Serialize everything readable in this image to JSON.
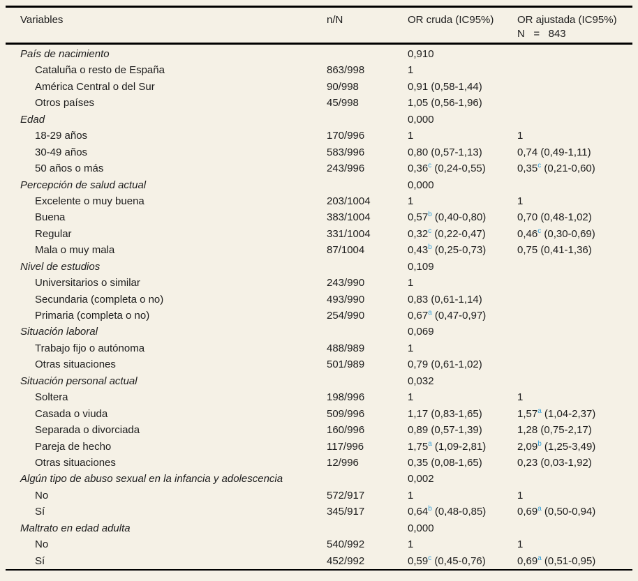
{
  "colors": {
    "background": "#f5f1e6",
    "text": "#1c1c1c",
    "superscript_blue": "#35a0d8",
    "rule": "#000000"
  },
  "table": {
    "columns": [
      {
        "label": "Variables"
      },
      {
        "label": "n/N"
      },
      {
        "label": "OR cruda (IC95%)"
      },
      {
        "label": "OR ajustada (IC95%)",
        "sublabel": "N   =   843"
      }
    ],
    "rows": [
      {
        "group": true,
        "label": "País de nacimiento",
        "p": "0,910"
      },
      {
        "label": "Cataluña o resto de España",
        "nN": "863/998",
        "cruda": {
          "v": "1"
        }
      },
      {
        "label": "América Central o del Sur",
        "nN": "90/998",
        "cruda": {
          "v": "0,91",
          "ci": "(0,58-1,44)"
        }
      },
      {
        "label": "Otros países",
        "nN": "45/998",
        "cruda": {
          "v": "1,05",
          "ci": "(0,56-1,96)"
        }
      },
      {
        "group": true,
        "label": "Edad",
        "p": "0,000"
      },
      {
        "label": "18-29 años",
        "nN": "170/996",
        "cruda": {
          "v": "1"
        },
        "ajustada": {
          "v": "1"
        }
      },
      {
        "label": "30-49 años",
        "nN": "583/996",
        "cruda": {
          "v": "0,80",
          "ci": "(0,57-1,13)"
        },
        "ajustada": {
          "v": "0,74",
          "ci": "(0,49-1,11)"
        }
      },
      {
        "label": "50 años o más",
        "nN": "243/996",
        "cruda": {
          "v": "0,36",
          "sup": "c",
          "ci": "(0,24-0,55)"
        },
        "ajustada": {
          "v": "0,35",
          "sup": "c",
          "ci": "(0,21-0,60)"
        }
      },
      {
        "group": true,
        "label": "Percepción de salud actual",
        "p": "0,000"
      },
      {
        "label": "Excelente o muy buena",
        "nN": "203/1004",
        "cruda": {
          "v": "1"
        },
        "ajustada": {
          "v": "1"
        }
      },
      {
        "label": "Buena",
        "nN": "383/1004",
        "cruda": {
          "v": "0,57",
          "sup": "b",
          "ci": "(0,40-0,80)"
        },
        "ajustada": {
          "v": "0,70",
          "ci": "(0,48-1,02)"
        }
      },
      {
        "label": "Regular",
        "nN": "331/1004",
        "cruda": {
          "v": "0,32",
          "sup": "c",
          "ci": "(0,22-0,47)"
        },
        "ajustada": {
          "v": "0,46",
          "sup": "c",
          "ci": "(0,30-0,69)"
        }
      },
      {
        "label": "Mala o muy mala",
        "nN": "87/1004",
        "cruda": {
          "v": "0,43",
          "sup": "b",
          "ci": "(0,25-0,73)"
        },
        "ajustada": {
          "v": "0,75",
          "ci": "(0,41-1,36)"
        }
      },
      {
        "group": true,
        "label": "Nivel de estudios",
        "p": "0,109"
      },
      {
        "label": "Universitarios o similar",
        "nN": "243/990",
        "cruda": {
          "v": "1"
        }
      },
      {
        "label": "Secundaria (completa o no)",
        "nN": "493/990",
        "cruda": {
          "v": "0,83",
          "ci": "(0,61-1,14)"
        }
      },
      {
        "label": "Primaria (completa o no)",
        "nN": "254/990",
        "cruda": {
          "v": "0,67",
          "sup": "a",
          "ci": "(0,47-0,97)"
        }
      },
      {
        "group": true,
        "label": "Situación laboral",
        "p": "0,069"
      },
      {
        "label": "Trabajo fijo o autónoma",
        "nN": "488/989",
        "cruda": {
          "v": "1"
        }
      },
      {
        "label": "Otras situaciones",
        "nN": "501/989",
        "cruda": {
          "v": "0,79",
          "ci": "(0,61-1,02)"
        }
      },
      {
        "group": true,
        "label": "Situación personal actual",
        "p": "0,032"
      },
      {
        "label": "Soltera",
        "nN": "198/996",
        "cruda": {
          "v": "1"
        },
        "ajustada": {
          "v": "1"
        }
      },
      {
        "label": "Casada o viuda",
        "nN": "509/996",
        "cruda": {
          "v": "1,17",
          "ci": "(0,83-1,65)"
        },
        "ajustada": {
          "v": "1,57",
          "sup": "a",
          "ci": "(1,04-2,37)"
        }
      },
      {
        "label": "Separada o divorciada",
        "nN": "160/996",
        "cruda": {
          "v": "0,89",
          "ci": "(0,57-1,39)"
        },
        "ajustada": {
          "v": "1,28",
          "ci": "(0,75-2,17)"
        }
      },
      {
        "label": "Pareja de hecho",
        "nN": "117/996",
        "cruda": {
          "v": "1,75",
          "sup": "a",
          "ci": "(1,09-2,81)"
        },
        "ajustada": {
          "v": "2,09",
          "sup": "b",
          "ci": "(1,25-3,49)"
        }
      },
      {
        "label": "Otras situaciones",
        "nN": "12/996",
        "cruda": {
          "v": "0,35",
          "ci": "(0,08-1,65)"
        },
        "ajustada": {
          "v": "0,23",
          "ci": "(0,03-1,92)"
        }
      },
      {
        "group": true,
        "label": "Algún tipo de abuso sexual en la infancia y adolescencia",
        "p": "0,002"
      },
      {
        "label": "No",
        "nN": "572/917",
        "cruda": {
          "v": "1"
        },
        "ajustada": {
          "v": "1"
        }
      },
      {
        "label": "Sí",
        "nN": "345/917",
        "cruda": {
          "v": "0,64",
          "sup": "b",
          "ci": "(0,48-0,85)"
        },
        "ajustada": {
          "v": "0,69",
          "sup": "a",
          "ci": "(0,50-0,94)"
        }
      },
      {
        "group": true,
        "label": "Maltrato en edad adulta",
        "p": "0,000"
      },
      {
        "label": "No",
        "nN": "540/992",
        "cruda": {
          "v": "1"
        },
        "ajustada": {
          "v": "1"
        }
      },
      {
        "label": "Sí",
        "nN": "452/992",
        "cruda": {
          "v": "0,59",
          "sup": "c",
          "ci": "(0,45-0,76)"
        },
        "ajustada": {
          "v": "0,69",
          "sup": "a",
          "ci": "(0,51-0,95)"
        }
      }
    ]
  }
}
